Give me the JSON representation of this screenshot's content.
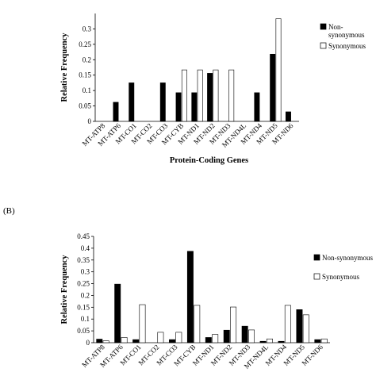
{
  "chart_data": [
    {
      "type": "bar",
      "panel_label": "",
      "categories": [
        "MT-ATP8",
        "MT-ATP6",
        "MT-CO1",
        "MT-CO2",
        "MT-CO3",
        "MT-CYB",
        "MT-ND1",
        "MT-ND2",
        "MT-ND3",
        "MT-ND4L",
        "MT-ND4",
        "MT-ND5",
        "MT-ND6"
      ],
      "series": [
        {
          "name": "Non-synonymous",
          "fill": "#000000",
          "values": [
            0,
            0.062,
            0.125,
            0,
            0.125,
            0.093,
            0.093,
            0.156,
            0,
            0,
            0.093,
            0.218,
            0.031
          ]
        },
        {
          "name": "Synonymous",
          "fill": "#ffffff",
          "values": [
            0,
            0,
            0,
            0,
            0,
            0.167,
            0.167,
            0.167,
            0.167,
            0,
            0,
            0.333,
            0
          ]
        }
      ],
      "legend_lines": [
        [
          "Non-",
          "synonymous"
        ],
        [
          "Synonymous"
        ]
      ],
      "xlabel": "Protein-Coding Genes",
      "ylabel": "Relative Frequency",
      "ylim": [
        0,
        0.35
      ],
      "yticks": [
        "0",
        "0.05",
        "0.1",
        "0.15",
        "0.2",
        "0.25",
        "0.3"
      ],
      "legend_position": "right",
      "grid": false
    },
    {
      "type": "bar",
      "panel_label": "(B)",
      "categories": [
        "MT-ATP8",
        "MT-ATP6",
        "MT-CO1",
        "MT-CO2",
        "MT-CO3",
        "MT-CYB",
        "MT-ND1",
        "MT-ND2",
        "MT-ND3",
        "MT-ND4L",
        "MT-ND4",
        "MT-ND5",
        "MT-ND6"
      ],
      "series": [
        {
          "name": "Non-synonymous",
          "fill": "#000000",
          "values": [
            0.015,
            0.248,
            0.013,
            0,
            0.013,
            0.387,
            0.022,
            0.053,
            0.07,
            0.006,
            0.006,
            0.14,
            0.013
          ]
        },
        {
          "name": "Synonymous",
          "fill": "#ffffff",
          "values": [
            0.008,
            0.022,
            0.161,
            0.044,
            0.044,
            0.158,
            0.035,
            0.151,
            0.054,
            0.016,
            0.158,
            0.118,
            0.016
          ]
        }
      ],
      "legend_lines": [
        [
          "Non-synonymous"
        ],
        [
          "Synonymous"
        ]
      ],
      "xlabel": "",
      "ylabel": "Relative Frequency",
      "ylim": [
        0,
        0.45
      ],
      "yticks": [
        "0",
        "0.05",
        "0.1",
        "0.15",
        "0.2",
        "0.25",
        "0.3",
        "0.35",
        "0.4",
        "0.45"
      ],
      "legend_position": "right",
      "grid": false
    }
  ]
}
